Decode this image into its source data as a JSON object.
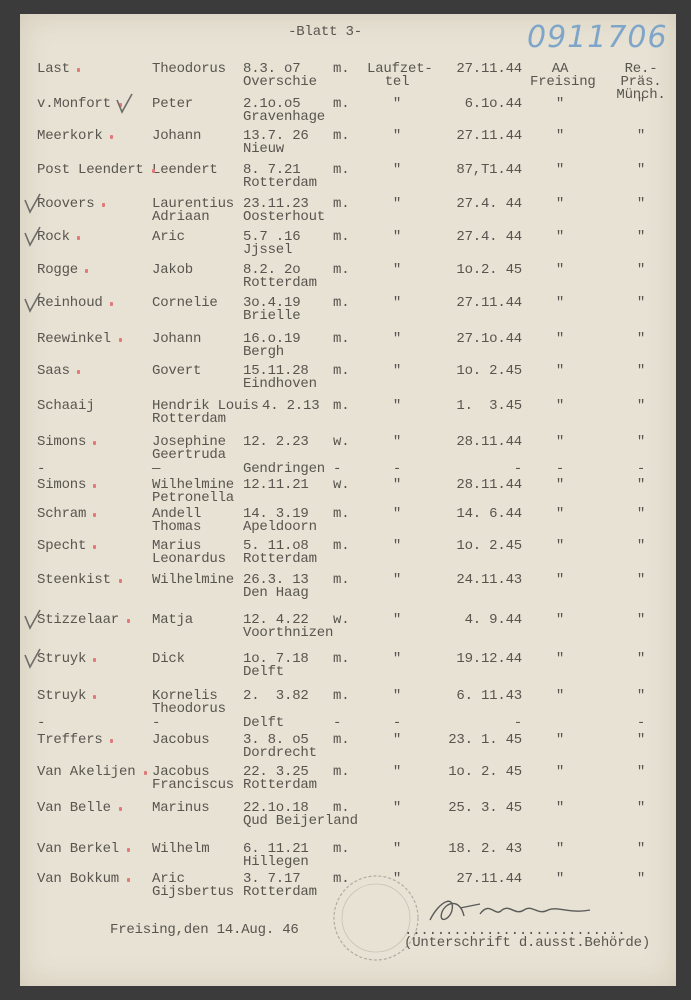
{
  "document": {
    "sheet_title": "-Blatt 3-",
    "archive_number": "0911706",
    "footer_place_date": "Freising,den 14.Aug. 46",
    "signature_line": "...........................",
    "signature_caption": "(Unterschrift d.ausst.Behörde)",
    "signature_text": "Th. Ammann",
    "stamp_text": "Freising",
    "colors": {
      "paper": "#e7e2d4",
      "ink": "#58554f",
      "red_mark": "#e07a7a",
      "archive_blue": "#7fa6c8"
    }
  },
  "rows": [
    {
      "surname": "Last",
      "first": [
        "Theodorus",
        ""
      ],
      "born": "8.3. o7",
      "place": "Overschie",
      "sex": "m.",
      "via": [
        "Laufzet-",
        "tel"
      ],
      "date": "27.11.44",
      "office": [
        "AA",
        "Freising"
      ],
      "authority": [
        "Re.-",
        "Präs.",
        "Münch."
      ],
      "check": false,
      "dot": true
    },
    {
      "surname": "v.Monfort",
      "first": [
        "Peter",
        ""
      ],
      "born": "2.1o.o5",
      "place": "Gravenhage",
      "sex": "m.",
      "via": [
        "\"",
        ""
      ],
      "date": "6.1o.44",
      "office": [
        "\"",
        ""
      ],
      "authority": [
        "\"",
        "",
        ""
      ],
      "check": true,
      "dot": true
    },
    {
      "surname": "Meerkork",
      "first": [
        "Johann",
        ""
      ],
      "born": "13.7. 26",
      "place": "Nieuw",
      "sex": "m.",
      "via": [
        "\"",
        ""
      ],
      "date": "27.11.44",
      "office": [
        "\"",
        ""
      ],
      "authority": [
        "\"",
        "",
        ""
      ],
      "check": false,
      "dot": true
    },
    {
      "surname": "Post Leendert",
      "first": [
        "Leendert",
        ""
      ],
      "born": "8. 7.21",
      "place": "Rotterdam",
      "sex": "m.",
      "via": [
        "\"",
        ""
      ],
      "date": "87,T1.44",
      "office": [
        "\"",
        ""
      ],
      "authority": [
        "\"",
        "",
        ""
      ],
      "check": false,
      "dot": true
    },
    {
      "surname": "Roovers",
      "first": [
        "Laurentius",
        "Adriaan"
      ],
      "born": "23.11.23",
      "place": "Oosterhout",
      "sex": "m.",
      "via": [
        "\"",
        ""
      ],
      "date": "27.4. 44",
      "office": [
        "\"",
        ""
      ],
      "authority": [
        "\"",
        "",
        ""
      ],
      "check": true,
      "dot": true
    },
    {
      "surname": "Rock",
      "first": [
        "Aric",
        ""
      ],
      "born": "5.7 .16",
      "place": "Jjssel",
      "sex": "m.",
      "via": [
        "\"",
        ""
      ],
      "date": "27.4. 44",
      "office": [
        "\"",
        ""
      ],
      "authority": [
        "\"",
        "",
        ""
      ],
      "check": true,
      "dot": true
    },
    {
      "surname": "Rogge",
      "first": [
        "Jakob",
        ""
      ],
      "born": "8.2. 2o",
      "place": "Rotterdam",
      "sex": "m.",
      "via": [
        "\"",
        ""
      ],
      "date": "1o.2. 45",
      "office": [
        "\"",
        ""
      ],
      "authority": [
        "\"",
        "",
        ""
      ],
      "check": false,
      "dot": true
    },
    {
      "surname": "Reinhoud",
      "first": [
        "Cornelie",
        ""
      ],
      "born": "3o.4.19",
      "place": "Brielle",
      "sex": "m.",
      "via": [
        "\"",
        ""
      ],
      "date": "27.11.44",
      "office": [
        "\"",
        ""
      ],
      "authority": [
        "\"",
        "",
        ""
      ],
      "check": true,
      "dot": true
    },
    {
      "surname": "Reewinkel",
      "first": [
        "Johann",
        ""
      ],
      "born": "16.o.19",
      "place": "Bergh",
      "sex": "m.",
      "via": [
        "\"",
        ""
      ],
      "date": "27.1o.44",
      "office": [
        "\"",
        ""
      ],
      "authority": [
        "\"",
        "",
        ""
      ],
      "check": false,
      "dot": true
    },
    {
      "surname": "Saas",
      "first": [
        "Govert",
        ""
      ],
      "born": "15.11.28",
      "place": "Eindhoven",
      "sex": "m.",
      "via": [
        "\"",
        ""
      ],
      "date": "1o. 2.45",
      "office": [
        "\"",
        ""
      ],
      "authority": [
        "\"",
        "",
        ""
      ],
      "check": false,
      "dot": true
    },
    {
      "surname": "Schaaij",
      "first": [
        "Hendrik Louis",
        "Rotterdam"
      ],
      "born": "4. 2.13",
      "place": "",
      "sex": "m.",
      "via": [
        "\"",
        ""
      ],
      "date": "1.  3.45",
      "office": [
        "\"",
        ""
      ],
      "authority": [
        "\"",
        "",
        ""
      ],
      "check": false,
      "dot": false
    },
    {
      "surname": "Simons",
      "first": [
        "Josephine",
        "Geertruda"
      ],
      "born": "12. 2.23",
      "place": "",
      "sex": "w.",
      "via": [
        "\"",
        ""
      ],
      "date": "28.11.44",
      "office": [
        "\"",
        ""
      ],
      "authority": [
        "\"",
        "",
        ""
      ],
      "check": false,
      "dot": true
    },
    {
      "surname": "-",
      "first": [
        "—",
        ""
      ],
      "born": "Gendringen",
      "place": "",
      "sex": "-",
      "via": [
        "-",
        ""
      ],
      "date": "-",
      "office": [
        "-",
        ""
      ],
      "authority": [
        "-",
        "",
        ""
      ],
      "check": false,
      "dot": false
    },
    {
      "surname": "Simons",
      "first": [
        "Wilhelmine",
        "Petronella"
      ],
      "born": "12.11.21",
      "place": "",
      "sex": "w.",
      "via": [
        "\"",
        ""
      ],
      "date": "28.11.44",
      "office": [
        "\"",
        ""
      ],
      "authority": [
        "\"",
        "",
        ""
      ],
      "check": false,
      "dot": true
    },
    {
      "surname": "Schram",
      "first": [
        "Andell",
        "Thomas"
      ],
      "born": "14. 3.19",
      "place": "Apeldoorn",
      "sex": "m.",
      "via": [
        "\"",
        ""
      ],
      "date": "14. 6.44",
      "office": [
        "\"",
        ""
      ],
      "authority": [
        "\"",
        "",
        ""
      ],
      "check": false,
      "dot": true
    },
    {
      "surname": "Specht",
      "first": [
        "Marius",
        "Leonardus"
      ],
      "born": "5. 11.o8",
      "place": "Rotterdam",
      "sex": "m.",
      "via": [
        "\"",
        ""
      ],
      "date": "1o. 2.45",
      "office": [
        "\"",
        ""
      ],
      "authority": [
        "\"",
        "",
        ""
      ],
      "check": false,
      "dot": true
    },
    {
      "surname": "Steenkist",
      "first": [
        "Wilhelmine",
        ""
      ],
      "born": "26.3. 13",
      "place": "Den Haag",
      "sex": "m.",
      "via": [
        "\"",
        ""
      ],
      "date": "24.11.43",
      "office": [
        "\"",
        ""
      ],
      "authority": [
        "\"",
        "",
        ""
      ],
      "check": false,
      "dot": true
    },
    {
      "surname": "Stizzelaar",
      "first": [
        "Matja",
        ""
      ],
      "born": "12. 4.22",
      "place": "Voorthnizen",
      "sex": "w.",
      "via": [
        "\"",
        ""
      ],
      "date": "4. 9.44",
      "office": [
        "\"",
        ""
      ],
      "authority": [
        "\"",
        "",
        ""
      ],
      "check": true,
      "dot": true
    },
    {
      "surname": "Struyk",
      "first": [
        "Dick",
        ""
      ],
      "born": "1o. 7.18",
      "place": "Delft",
      "sex": "m.",
      "via": [
        "\"",
        ""
      ],
      "date": "19.12.44",
      "office": [
        "\"",
        ""
      ],
      "authority": [
        "\"",
        "",
        ""
      ],
      "check": true,
      "dot": true
    },
    {
      "surname": "Struyk",
      "first": [
        "Kornelis",
        "Theodorus"
      ],
      "born": "2.  3.82",
      "place": "",
      "sex": "m.",
      "via": [
        "\"",
        ""
      ],
      "date": "6. 11.43",
      "office": [
        "\"",
        ""
      ],
      "authority": [
        "\"",
        "",
        ""
      ],
      "check": false,
      "dot": true
    },
    {
      "surname": "-",
      "first": [
        "-",
        ""
      ],
      "born": "Delft",
      "place": "",
      "sex": "-",
      "via": [
        "-",
        ""
      ],
      "date": "-",
      "office": [
        "",
        ""
      ],
      "authority": [
        "-",
        "",
        ""
      ],
      "check": false,
      "dot": false
    },
    {
      "surname": "Treffers",
      "first": [
        "Jacobus",
        ""
      ],
      "born": "3. 8. o5",
      "place": "Dordrecht",
      "sex": "m.",
      "via": [
        "\"",
        ""
      ],
      "date": "23. 1. 45",
      "office": [
        "\"",
        ""
      ],
      "authority": [
        "\"",
        "",
        ""
      ],
      "check": false,
      "dot": true
    },
    {
      "surname": "Van Akelijen",
      "first": [
        "Jacobus",
        "Franciscus"
      ],
      "born": "22. 3.25",
      "place": "Rotterdam",
      "sex": "m.",
      "via": [
        "\"",
        ""
      ],
      "date": "1o. 2. 45",
      "office": [
        "\"",
        ""
      ],
      "authority": [
        "\"",
        "",
        ""
      ],
      "check": false,
      "dot": true
    },
    {
      "surname": "Van Belle",
      "first": [
        "Marinus",
        ""
      ],
      "born": "22.1o.18",
      "place": "Qud Beijerland",
      "sex": "m.",
      "via": [
        "\"",
        ""
      ],
      "date": "25. 3. 45",
      "office": [
        "\"",
        ""
      ],
      "authority": [
        "\"",
        "",
        ""
      ],
      "check": false,
      "dot": true
    },
    {
      "surname": "Van Berkel",
      "first": [
        "Wilhelm",
        ""
      ],
      "born": "6. 11.21",
      "place": "Hillegen",
      "sex": "m.",
      "via": [
        "\"",
        ""
      ],
      "date": "18. 2. 43",
      "office": [
        "\"",
        ""
      ],
      "authority": [
        "\"",
        "",
        ""
      ],
      "check": false,
      "dot": true
    },
    {
      "surname": "Van Bokkum",
      "first": [
        "Aric",
        "Gijsbertus"
      ],
      "born": "3. 7.17",
      "place": "Rotterdam",
      "sex": "m.",
      "via": [
        "\"",
        ""
      ],
      "date": "27.11.44",
      "office": [
        "\"",
        ""
      ],
      "authority": [
        "\"",
        "",
        ""
      ],
      "check": false,
      "dot": true
    }
  ]
}
